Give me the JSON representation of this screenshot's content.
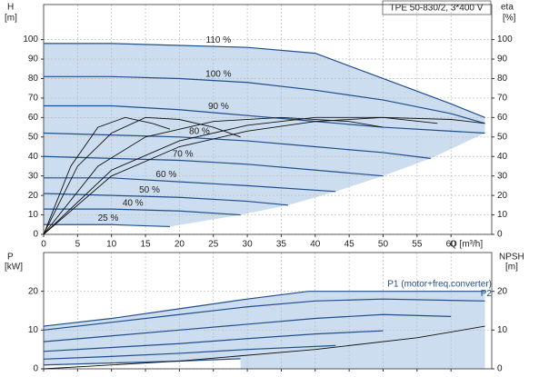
{
  "chart_data": [
    {
      "type": "line",
      "title": "TPE 50-830/2, 3*400 V",
      "x_label": "Q [m³/h]",
      "y_label": "H",
      "y_unit": "[m]",
      "y2_label": "eta",
      "y2_unit": "[%]",
      "xlim": [
        0,
        66
      ],
      "xticks": [
        0,
        5,
        10,
        15,
        20,
        25,
        30,
        35,
        40,
        45,
        50,
        55,
        60
      ],
      "ylim": [
        0,
        118
      ],
      "yticks": [
        0,
        10,
        20,
        30,
        40,
        50,
        60,
        70,
        80,
        90,
        100
      ],
      "y2lim": [
        0,
        118
      ],
      "y2ticks": [
        0,
        10,
        20,
        30,
        40,
        50,
        60,
        70,
        80,
        90,
        100
      ],
      "grid": true,
      "shade_color": "#c3d7ec",
      "series": [
        {
          "name": "110 %",
          "color": "#1f4e8c",
          "x": [
            0,
            10,
            20,
            30,
            40,
            50,
            60,
            65
          ],
          "values": [
            98,
            98,
            97,
            96,
            93,
            80,
            67,
            60
          ]
        },
        {
          "name": "100 %",
          "color": "#1f4e8c",
          "x": [
            0,
            10,
            20,
            30,
            40,
            50,
            60,
            65
          ],
          "values": [
            81,
            81,
            80,
            78,
            74,
            69,
            62,
            57
          ]
        },
        {
          "name": "90 %",
          "color": "#1f4e8c",
          "x": [
            0,
            10,
            20,
            30,
            40,
            50,
            60,
            65
          ],
          "values": [
            66,
            66,
            64,
            61,
            58,
            55,
            53,
            52
          ]
        },
        {
          "name": "80 %",
          "color": "#1f4e8c",
          "x": [
            0,
            10,
            20,
            30,
            40,
            50,
            57
          ],
          "values": [
            52,
            51,
            50,
            48,
            45,
            42,
            39
          ]
        },
        {
          "name": "70 %",
          "color": "#1f4e8c",
          "x": [
            0,
            10,
            20,
            30,
            40,
            50
          ],
          "values": [
            40,
            39,
            38,
            36,
            33,
            30
          ]
        },
        {
          "name": "60 %",
          "color": "#1f4e8c",
          "x": [
            0,
            10,
            20,
            30,
            43
          ],
          "values": [
            29,
            29,
            27,
            25,
            22
          ]
        },
        {
          "name": "50 %",
          "color": "#1f4e8c",
          "x": [
            0,
            10,
            20,
            30,
            36
          ],
          "values": [
            21,
            20,
            19,
            17,
            15
          ]
        },
        {
          "name": "40 %",
          "color": "#1f4e8c",
          "x": [
            0,
            10,
            20,
            29
          ],
          "values": [
            13,
            13,
            12,
            10
          ]
        },
        {
          "name": "25 %",
          "color": "#1f4e8c",
          "x": [
            0,
            5,
            10,
            18.6
          ],
          "values": [
            5,
            5,
            5,
            4
          ]
        },
        {
          "axis": "y2",
          "color": "#111",
          "x": [
            0,
            10,
            20,
            30,
            40,
            50,
            60,
            65
          ],
          "values": [
            0,
            30,
            45,
            53,
            58,
            60,
            59,
            57
          ]
        },
        {
          "axis": "y2",
          "color": "#111",
          "x": [
            0,
            10,
            20,
            30,
            40,
            50,
            58
          ],
          "values": [
            0,
            33,
            48,
            56,
            60,
            60,
            57
          ]
        },
        {
          "axis": "y2",
          "color": "#111",
          "x": [
            0,
            8,
            15,
            25,
            35,
            45,
            50
          ],
          "values": [
            0,
            35,
            50,
            58,
            60,
            58,
            55
          ]
        },
        {
          "axis": "y2",
          "color": "#111",
          "x": [
            0,
            5,
            10,
            15,
            20,
            25,
            29
          ],
          "values": [
            0,
            35,
            52,
            60,
            59,
            55,
            50
          ]
        },
        {
          "axis": "y2",
          "color": "#111",
          "x": [
            0,
            4,
            8,
            12,
            16,
            18.6
          ],
          "values": [
            0,
            35,
            55,
            60,
            57,
            54
          ]
        }
      ]
    },
    {
      "type": "line",
      "y_label": "P",
      "y_unit": "[kW]",
      "y2_label": "NPSH",
      "y2_unit": "[m]",
      "xlim": [
        0,
        66
      ],
      "xticks": [
        0,
        5,
        10,
        15,
        20,
        25,
        30,
        35,
        40,
        45,
        50,
        55,
        60
      ],
      "ylim": [
        0,
        30
      ],
      "yticks": [
        0,
        10,
        20
      ],
      "y2lim": [
        0,
        30
      ],
      "y2ticks": [
        0,
        10,
        20
      ],
      "grid": true,
      "shade_color": "#c3d7ec",
      "series": [
        {
          "name": "P1 (motor+freq.converter)",
          "color": "#1f4e8c",
          "x": [
            0,
            10,
            20,
            30,
            39,
            65
          ],
          "values": [
            11,
            13,
            15.5,
            18,
            20,
            20
          ]
        },
        {
          "name": "P2",
          "color": "#1f4e8c",
          "x": [
            0,
            10,
            20,
            30,
            40,
            50,
            65
          ],
          "values": [
            10,
            12,
            14,
            16,
            17.5,
            18,
            17.5
          ]
        },
        {
          "color": "#1f4e8c",
          "x": [
            0,
            10,
            20,
            30,
            40,
            50,
            60
          ],
          "values": [
            7,
            8.5,
            10,
            11.5,
            13,
            14,
            13.5
          ]
        },
        {
          "color": "#1f4e8c",
          "x": [
            0,
            10,
            20,
            30,
            40,
            50
          ],
          "values": [
            4.5,
            5.5,
            6.5,
            7.8,
            9,
            9.8
          ]
        },
        {
          "color": "#1f4e8c",
          "x": [
            0,
            10,
            20,
            30,
            43
          ],
          "values": [
            2.5,
            3.2,
            4,
            5,
            6
          ]
        },
        {
          "color": "#1f4e8c",
          "x": [
            0,
            10,
            20,
            29
          ],
          "values": [
            1,
            1.5,
            2,
            2.6
          ]
        },
        {
          "axis": "y2",
          "color": "#111",
          "x": [
            0,
            20,
            40,
            55,
            65
          ],
          "values": [
            0,
            2,
            5,
            8,
            11
          ]
        }
      ]
    }
  ]
}
